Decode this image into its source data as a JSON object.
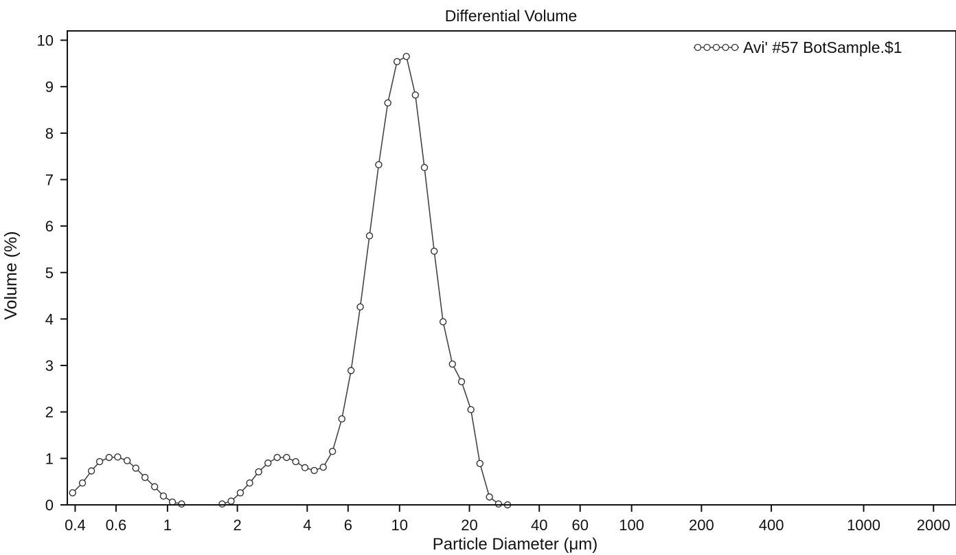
{
  "chart_data": {
    "type": "scatter",
    "title": "Differential Volume",
    "xlabel": "Particle Diameter (μm)",
    "ylabel": "Volume (%)",
    "x_scale": "log",
    "xlim": [
      0.37,
      2500
    ],
    "ylim": [
      0,
      10.2
    ],
    "x_ticks": [
      0.4,
      0.6,
      1,
      2,
      4,
      6,
      10,
      20,
      40,
      60,
      100,
      200,
      400,
      1000,
      2000
    ],
    "x_tick_labels": [
      "0.4",
      "0.6",
      "1",
      "2",
      "4",
      "6",
      "10",
      "20",
      "40",
      "60",
      "100",
      "200",
      "400",
      "1000",
      "2000"
    ],
    "y_ticks": [
      0,
      1,
      2,
      3,
      4,
      5,
      6,
      7,
      8,
      9,
      10
    ],
    "y_tick_labels": [
      "0",
      "1",
      "2",
      "3",
      "4",
      "5",
      "6",
      "7",
      "8",
      "9",
      "10"
    ],
    "grid": false,
    "legend_position": "top-right",
    "series": [
      {
        "name": "Avi' #57 BotSample.$1",
        "marker": "open-circle",
        "color": "#444444",
        "x": [
          0.39,
          0.43,
          0.47,
          0.51,
          0.56,
          0.61,
          0.67,
          0.73,
          0.8,
          0.88,
          0.96,
          1.05,
          1.15,
          1.72,
          1.88,
          2.06,
          2.26,
          2.47,
          2.71,
          2.97,
          3.26,
          3.57,
          3.91,
          4.29,
          4.69,
          5.14,
          5.64,
          6.18,
          6.77,
          7.42,
          8.13,
          8.9,
          9.75,
          10.7,
          11.7,
          12.8,
          14.1,
          15.4,
          16.9,
          18.5,
          20.3,
          22.2,
          24.4,
          26.7,
          29.2
        ],
        "y": [
          0.26,
          0.47,
          0.73,
          0.93,
          1.02,
          1.03,
          0.95,
          0.79,
          0.59,
          0.39,
          0.19,
          0.06,
          0.02,
          0.02,
          0.08,
          0.26,
          0.47,
          0.71,
          0.9,
          1.02,
          1.02,
          0.93,
          0.8,
          0.74,
          0.81,
          1.15,
          1.85,
          2.89,
          4.26,
          5.79,
          7.32,
          8.65,
          9.54,
          9.65,
          8.82,
          7.26,
          5.46,
          3.94,
          3.03,
          2.65,
          2.05,
          0.89,
          0.17,
          0.02,
          0.0
        ]
      }
    ]
  }
}
